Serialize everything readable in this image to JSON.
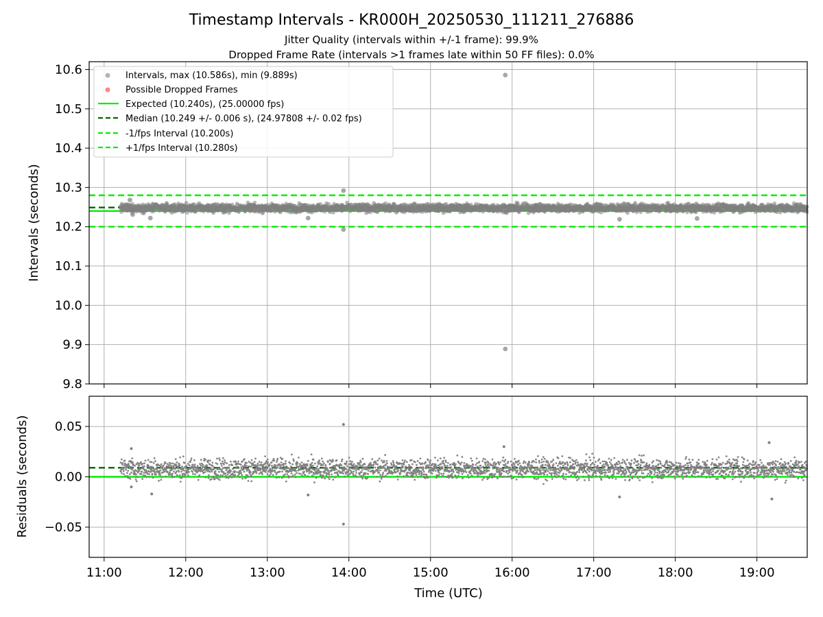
{
  "figure": {
    "title": "Timestamp Intervals - KR000H_20250530_111211_276886",
    "subtitle_1": "Jitter Quality (intervals within +/-1 frame): 99.9%",
    "subtitle_2": "Dropped Frame Rate (intervals >1 frames late within 50 FF files): 0.0%"
  },
  "colors": {
    "points": "#808080",
    "dropped": "#ff5050",
    "expected": "#00ee00",
    "median": "#006400",
    "interval_bounds": "#00ee00",
    "grid": "#b0b0b0"
  },
  "chart_data": [
    {
      "type": "scatter",
      "ylabel": "Intervals (seconds)",
      "xlim": [
        "10:49",
        "19:37"
      ],
      "ylim": [
        9.8,
        10.62
      ],
      "grid": true,
      "legend_placement": "top-left",
      "x_ticks": [
        "11:00",
        "12:00",
        "13:00",
        "14:00",
        "15:00",
        "16:00",
        "17:00",
        "18:00",
        "19:00"
      ],
      "y_ticks": [
        "9.8",
        "9.9",
        "10.0",
        "10.1",
        "10.2",
        "10.3",
        "10.4",
        "10.5",
        "10.6"
      ],
      "y_tick_values": [
        9.8,
        9.9,
        10.0,
        10.1,
        10.2,
        10.3,
        10.4,
        10.5,
        10.6
      ],
      "reference_lines": [
        {
          "name": "Expected (10.240s), (25.00000 fps)",
          "y": 10.24,
          "style": "solid",
          "color": "#00ee00"
        },
        {
          "name": "Median (10.249 +/- 0.006 s), (24.97808 +/- 0.02 fps)",
          "y": 10.249,
          "style": "dashed",
          "color": "#006400"
        },
        {
          "name": "-1/fps Interval (10.200s)",
          "y": 10.2,
          "style": "dashed",
          "color": "#00ee00"
        },
        {
          "name": "+1/fps Interval (10.280s)",
          "y": 10.28,
          "style": "dashed",
          "color": "#00ee00"
        }
      ],
      "series": [
        {
          "name": "Intervals, max (10.586s), min (9.889s)",
          "marker": "circle",
          "color": "#808080",
          "time_range": [
            "11:12",
            "19:37"
          ],
          "center": 10.248,
          "spread": 0.01
        },
        {
          "name": "Possible Dropped Frames",
          "marker": "circle",
          "color": "#ff5050",
          "points": []
        }
      ],
      "outliers": [
        {
          "x": "15:55",
          "y": 10.586
        },
        {
          "x": "15:55",
          "y": 9.889
        },
        {
          "x": "13:56",
          "y": 10.292
        },
        {
          "x": "13:56",
          "y": 10.193
        },
        {
          "x": "11:19",
          "y": 10.268
        },
        {
          "x": "11:21",
          "y": 10.231
        },
        {
          "x": "11:34",
          "y": 10.222
        },
        {
          "x": "13:30",
          "y": 10.222
        },
        {
          "x": "17:19",
          "y": 10.219
        },
        {
          "x": "18:16",
          "y": 10.221
        }
      ],
      "legend": [
        "Intervals, max (10.586s), min (9.889s)",
        "Possible Dropped Frames",
        "Expected (10.240s), (25.00000 fps)",
        "Median (10.249 +/- 0.006 s), (24.97808 +/- 0.02 fps)",
        "-1/fps Interval (10.200s)",
        "+1/fps Interval (10.280s)"
      ]
    },
    {
      "type": "scatter",
      "xlabel": "Time (UTC)",
      "ylabel": "Residuals (seconds)",
      "xlim": [
        "10:49",
        "19:37"
      ],
      "ylim": [
        -0.08,
        0.08
      ],
      "grid": true,
      "x_ticks": [
        "11:00",
        "12:00",
        "13:00",
        "14:00",
        "15:00",
        "16:00",
        "17:00",
        "18:00",
        "19:00"
      ],
      "y_ticks": [
        "−0.05",
        "0.00",
        "0.05"
      ],
      "y_tick_values": [
        -0.05,
        0.0,
        0.05
      ],
      "reference_lines": [
        {
          "y": 0.0,
          "style": "solid",
          "color": "#00ee00"
        },
        {
          "y": 0.009,
          "style": "dashed",
          "color": "#006400"
        }
      ],
      "series": [
        {
          "marker": "dot",
          "color": "#808080",
          "time_range": [
            "11:12",
            "19:37"
          ],
          "center": 0.008,
          "spread": 0.01
        }
      ],
      "outliers": [
        {
          "x": "13:56",
          "y": 0.052
        },
        {
          "x": "13:56",
          "y": -0.047
        },
        {
          "x": "11:20",
          "y": 0.028
        },
        {
          "x": "11:20",
          "y": -0.01
        },
        {
          "x": "11:35",
          "y": -0.017
        },
        {
          "x": "13:30",
          "y": -0.018
        },
        {
          "x": "17:19",
          "y": -0.02
        },
        {
          "x": "19:09",
          "y": 0.034
        },
        {
          "x": "19:11",
          "y": -0.022
        },
        {
          "x": "15:54",
          "y": 0.03
        }
      ]
    }
  ]
}
